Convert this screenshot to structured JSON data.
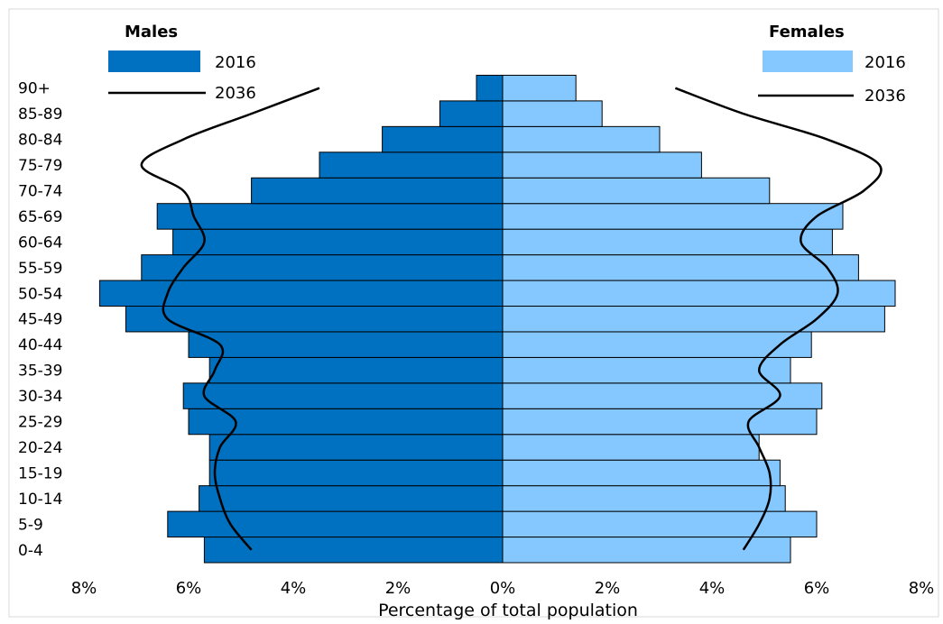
{
  "chart_data": {
    "type": "bar",
    "subtype": "population-pyramid",
    "xlabel": "Percentage of total population",
    "x_ticks": [
      "8%",
      "6%",
      "4%",
      "2%",
      "0%",
      "2%",
      "4%",
      "6%",
      "8%"
    ],
    "xlim": [
      -8,
      8
    ],
    "categories": [
      "0-4",
      "5-9",
      "10-14",
      "15-19",
      "20-24",
      "25-29",
      "30-34",
      "35-39",
      "40-44",
      "45-49",
      "50-54",
      "55-59",
      "60-64",
      "65-69",
      "70-74",
      "75-79",
      "80-84",
      "85-89",
      "90+"
    ],
    "series": [
      {
        "name": "2016",
        "group": "Males",
        "kind": "bar",
        "color": "#0070c0",
        "values": [
          5.7,
          6.4,
          5.8,
          5.6,
          5.6,
          6.0,
          6.1,
          5.6,
          6.0,
          7.2,
          7.7,
          6.9,
          6.3,
          6.6,
          4.8,
          3.5,
          2.3,
          1.2,
          0.5
        ]
      },
      {
        "name": "2016",
        "group": "Females",
        "kind": "bar",
        "color": "#85c8ff",
        "values": [
          5.5,
          6.0,
          5.4,
          5.3,
          4.9,
          6.0,
          6.1,
          5.5,
          5.9,
          7.3,
          7.5,
          6.8,
          6.3,
          6.5,
          5.1,
          3.8,
          3.0,
          1.9,
          1.4
        ]
      },
      {
        "name": "2036",
        "group": "Males",
        "kind": "line",
        "color": "#000000",
        "values": [
          4.8,
          5.2,
          5.4,
          5.5,
          5.4,
          5.1,
          5.7,
          5.5,
          5.4,
          6.4,
          6.4,
          6.1,
          5.7,
          5.9,
          6.1,
          6.9,
          6.1,
          4.8,
          3.5
        ]
      },
      {
        "name": "2036",
        "group": "Females",
        "kind": "line",
        "color": "#000000",
        "values": [
          4.6,
          4.9,
          5.1,
          5.1,
          4.9,
          4.7,
          5.3,
          4.9,
          5.3,
          6.0,
          6.4,
          6.2,
          5.7,
          6.0,
          6.9,
          7.2,
          6.2,
          4.6,
          3.3
        ]
      }
    ],
    "legend": {
      "males_title": "Males",
      "females_title": "Females",
      "bar_label": "2016",
      "line_label": "2036",
      "placement": "top"
    },
    "grid": false
  }
}
